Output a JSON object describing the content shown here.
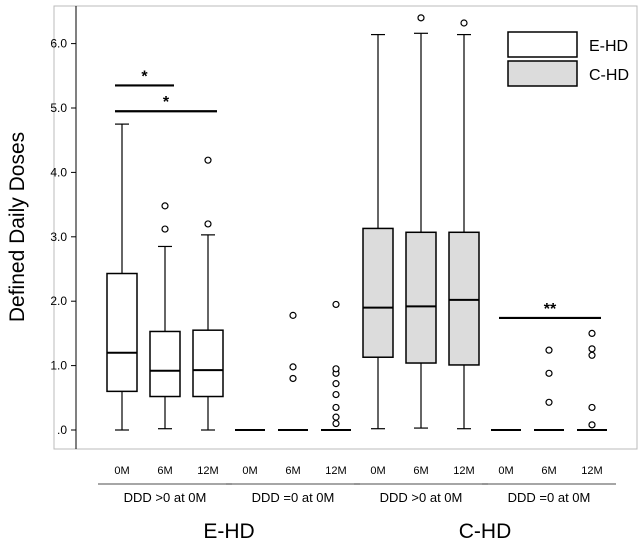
{
  "chart_data": {
    "type": "boxplot",
    "ylabel": "Defined Daily Doses",
    "ylim": [
      -0.1,
      6.6
    ],
    "yticks": [
      {
        "value": 0,
        "label": ".0"
      },
      {
        "value": 1,
        "label": "1.0"
      },
      {
        "value": 2,
        "label": "2.0"
      },
      {
        "value": 3,
        "label": "3.0"
      },
      {
        "value": 4,
        "label": "4.0"
      },
      {
        "value": 5,
        "label": "5.0"
      },
      {
        "value": 6,
        "label": "6.0"
      }
    ],
    "legend": {
      "position": "top-right",
      "entries": [
        {
          "label": "E-HD",
          "color": "#ffffff"
        },
        {
          "label": "C-HD",
          "color": "#dcdcdc"
        }
      ]
    },
    "groups": [
      {
        "name": "E-HD",
        "color": "#ffffff",
        "subgroups": [
          {
            "name": "DDD >0 at 0M",
            "boxes": [
              {
                "label": "0M",
                "whisker_low": 0.0,
                "q1": 0.6,
                "median": 1.2,
                "q3": 2.43,
                "whisker_high": 4.75,
                "outliers": []
              },
              {
                "label": "6M",
                "whisker_low": 0.02,
                "q1": 0.52,
                "median": 0.92,
                "q3": 1.53,
                "whisker_high": 2.85,
                "outliers": [
                  3.12,
                  3.48
                ]
              },
              {
                "label": "12M",
                "whisker_low": 0.0,
                "q1": 0.52,
                "median": 0.93,
                "q3": 1.55,
                "whisker_high": 3.03,
                "outliers": [
                  3.2,
                  4.19
                ]
              }
            ]
          },
          {
            "name": "DDD =0 at 0M",
            "boxes": [
              {
                "label": "0M",
                "whisker_low": 0.0,
                "q1": 0.0,
                "median": 0.0,
                "q3": 0.0,
                "whisker_high": 0.0,
                "outliers": []
              },
              {
                "label": "6M",
                "whisker_low": 0.0,
                "q1": 0.0,
                "median": 0.0,
                "q3": 0.0,
                "whisker_high": 0.0,
                "outliers": [
                  0.8,
                  0.98,
                  1.78
                ]
              },
              {
                "label": "12M",
                "whisker_low": 0.0,
                "q1": 0.0,
                "median": 0.0,
                "q3": 0.0,
                "whisker_high": 0.0,
                "outliers": [
                  0.1,
                  0.2,
                  0.35,
                  0.55,
                  0.72,
                  0.88,
                  0.95,
                  1.95
                ]
              }
            ]
          }
        ]
      },
      {
        "name": "C-HD",
        "color": "#dcdcdc",
        "subgroups": [
          {
            "name": "DDD >0 at 0M",
            "boxes": [
              {
                "label": "0M",
                "whisker_low": 0.02,
                "q1": 1.13,
                "median": 1.9,
                "q3": 3.13,
                "whisker_high": 6.14,
                "outliers": []
              },
              {
                "label": "6M",
                "whisker_low": 0.03,
                "q1": 1.04,
                "median": 1.92,
                "q3": 3.07,
                "whisker_high": 6.16,
                "outliers": [
                  6.4
                ]
              },
              {
                "label": "12M",
                "whisker_low": 0.02,
                "q1": 1.01,
                "median": 2.02,
                "q3": 3.07,
                "whisker_high": 6.14,
                "outliers": [
                  6.32
                ]
              }
            ]
          },
          {
            "name": "DDD =0 at 0M",
            "boxes": [
              {
                "label": "0M",
                "whisker_low": 0.0,
                "q1": 0.0,
                "median": 0.0,
                "q3": 0.0,
                "whisker_high": 0.0,
                "outliers": []
              },
              {
                "label": "6M",
                "whisker_low": 0.0,
                "q1": 0.0,
                "median": 0.0,
                "q3": 0.0,
                "whisker_high": 0.0,
                "outliers": [
                  0.43,
                  0.88,
                  1.24
                ]
              },
              {
                "label": "12M",
                "whisker_low": 0.0,
                "q1": 0.0,
                "median": 0.0,
                "q3": 0.0,
                "whisker_high": 0.0,
                "outliers": [
                  0.08,
                  0.35,
                  1.16,
                  1.26,
                  1.5
                ]
              }
            ]
          }
        ]
      }
    ],
    "annotations": [
      {
        "text": "*",
        "from": [
          0,
          0,
          0
        ],
        "to": [
          0,
          0,
          1
        ],
        "y": 5.35
      },
      {
        "text": "*",
        "from": [
          0,
          0,
          0
        ],
        "to": [
          0,
          0,
          2
        ],
        "y": 4.95
      },
      {
        "text": "**",
        "from": [
          1,
          1,
          0
        ],
        "to": [
          1,
          1,
          2
        ],
        "y": 1.74
      }
    ]
  }
}
